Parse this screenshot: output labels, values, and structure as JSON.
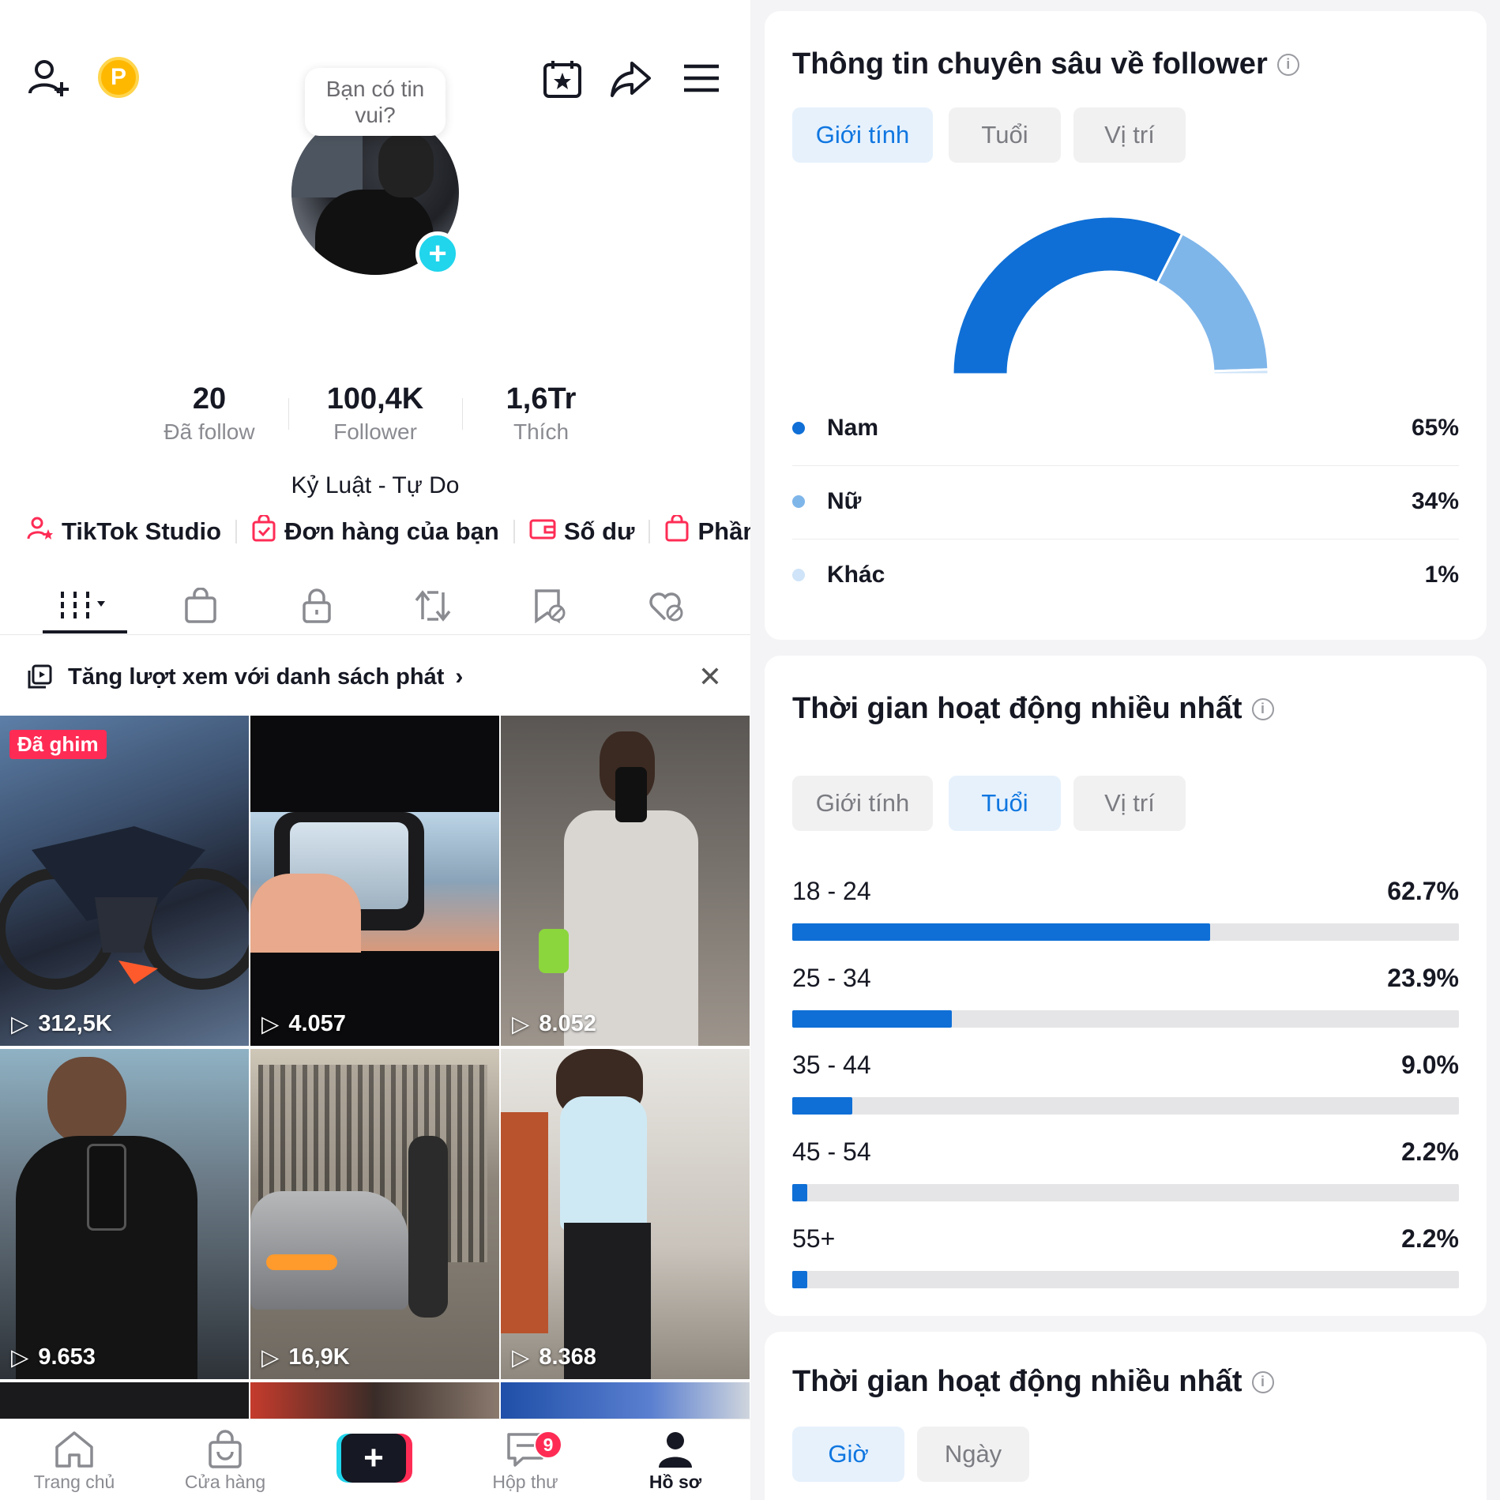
{
  "profile": {
    "bubble_text": "Bạn có tin vui?",
    "stats": [
      {
        "num": "20",
        "label": "Đã follow"
      },
      {
        "num": "100,4K",
        "label": "Follower"
      },
      {
        "num": "1,6Tr",
        "label": "Thích"
      }
    ],
    "bio": "Kỷ Luật - Tự Do",
    "quick_links": [
      "TikTok Studio",
      "Đơn hàng của bạn",
      "Số dư",
      "Phần"
    ],
    "playlist_banner": "Tăng lượt xem với danh sách phát",
    "pinned_label": "Đã ghim",
    "videos": [
      {
        "views": "312,5K"
      },
      {
        "views": "4.057"
      },
      {
        "views": "8.052"
      },
      {
        "views": "9.653"
      },
      {
        "views": "16,9K"
      },
      {
        "views": "8.368"
      }
    ]
  },
  "bottom_nav": {
    "items": [
      "Trang chủ",
      "Cửa hàng",
      "Hộp thư",
      "Hồ sơ"
    ],
    "inbox_badge": "9"
  },
  "follower_insights": {
    "title": "Thông tin chuyên sâu về follower",
    "filters": [
      "Giới tính",
      "Tuổi",
      "Vị trí"
    ],
    "selected_filter": "Giới tính",
    "gender": [
      {
        "label": "Nam",
        "pct": "65%",
        "value": 65,
        "color": "#0f6fd6"
      },
      {
        "label": "Nữ",
        "pct": "34%",
        "value": 34,
        "color": "#7fb6ea"
      },
      {
        "label": "Khác",
        "pct": "1%",
        "value": 1,
        "color": "#cfe4f8"
      }
    ]
  },
  "activity_age": {
    "title": "Thời gian hoạt động nhiều nhất",
    "filters": [
      "Giới tính",
      "Tuổi",
      "Vị trí"
    ],
    "selected_filter": "Tuổi",
    "ages": [
      {
        "range": "18 - 24",
        "pct": "62.7%",
        "value": 62.7
      },
      {
        "range": "25 - 34",
        "pct": "23.9%",
        "value": 23.9
      },
      {
        "range": "35 - 44",
        "pct": "9.0%",
        "value": 9.0
      },
      {
        "range": "45 - 54",
        "pct": "2.2%",
        "value": 2.2
      },
      {
        "range": "55+",
        "pct": "2.2%",
        "value": 2.2
      }
    ]
  },
  "activity_time": {
    "title": "Thời gian hoạt động nhiều nhất",
    "filters": [
      "Giờ",
      "Ngày"
    ],
    "selected_filter": "Giờ"
  }
}
